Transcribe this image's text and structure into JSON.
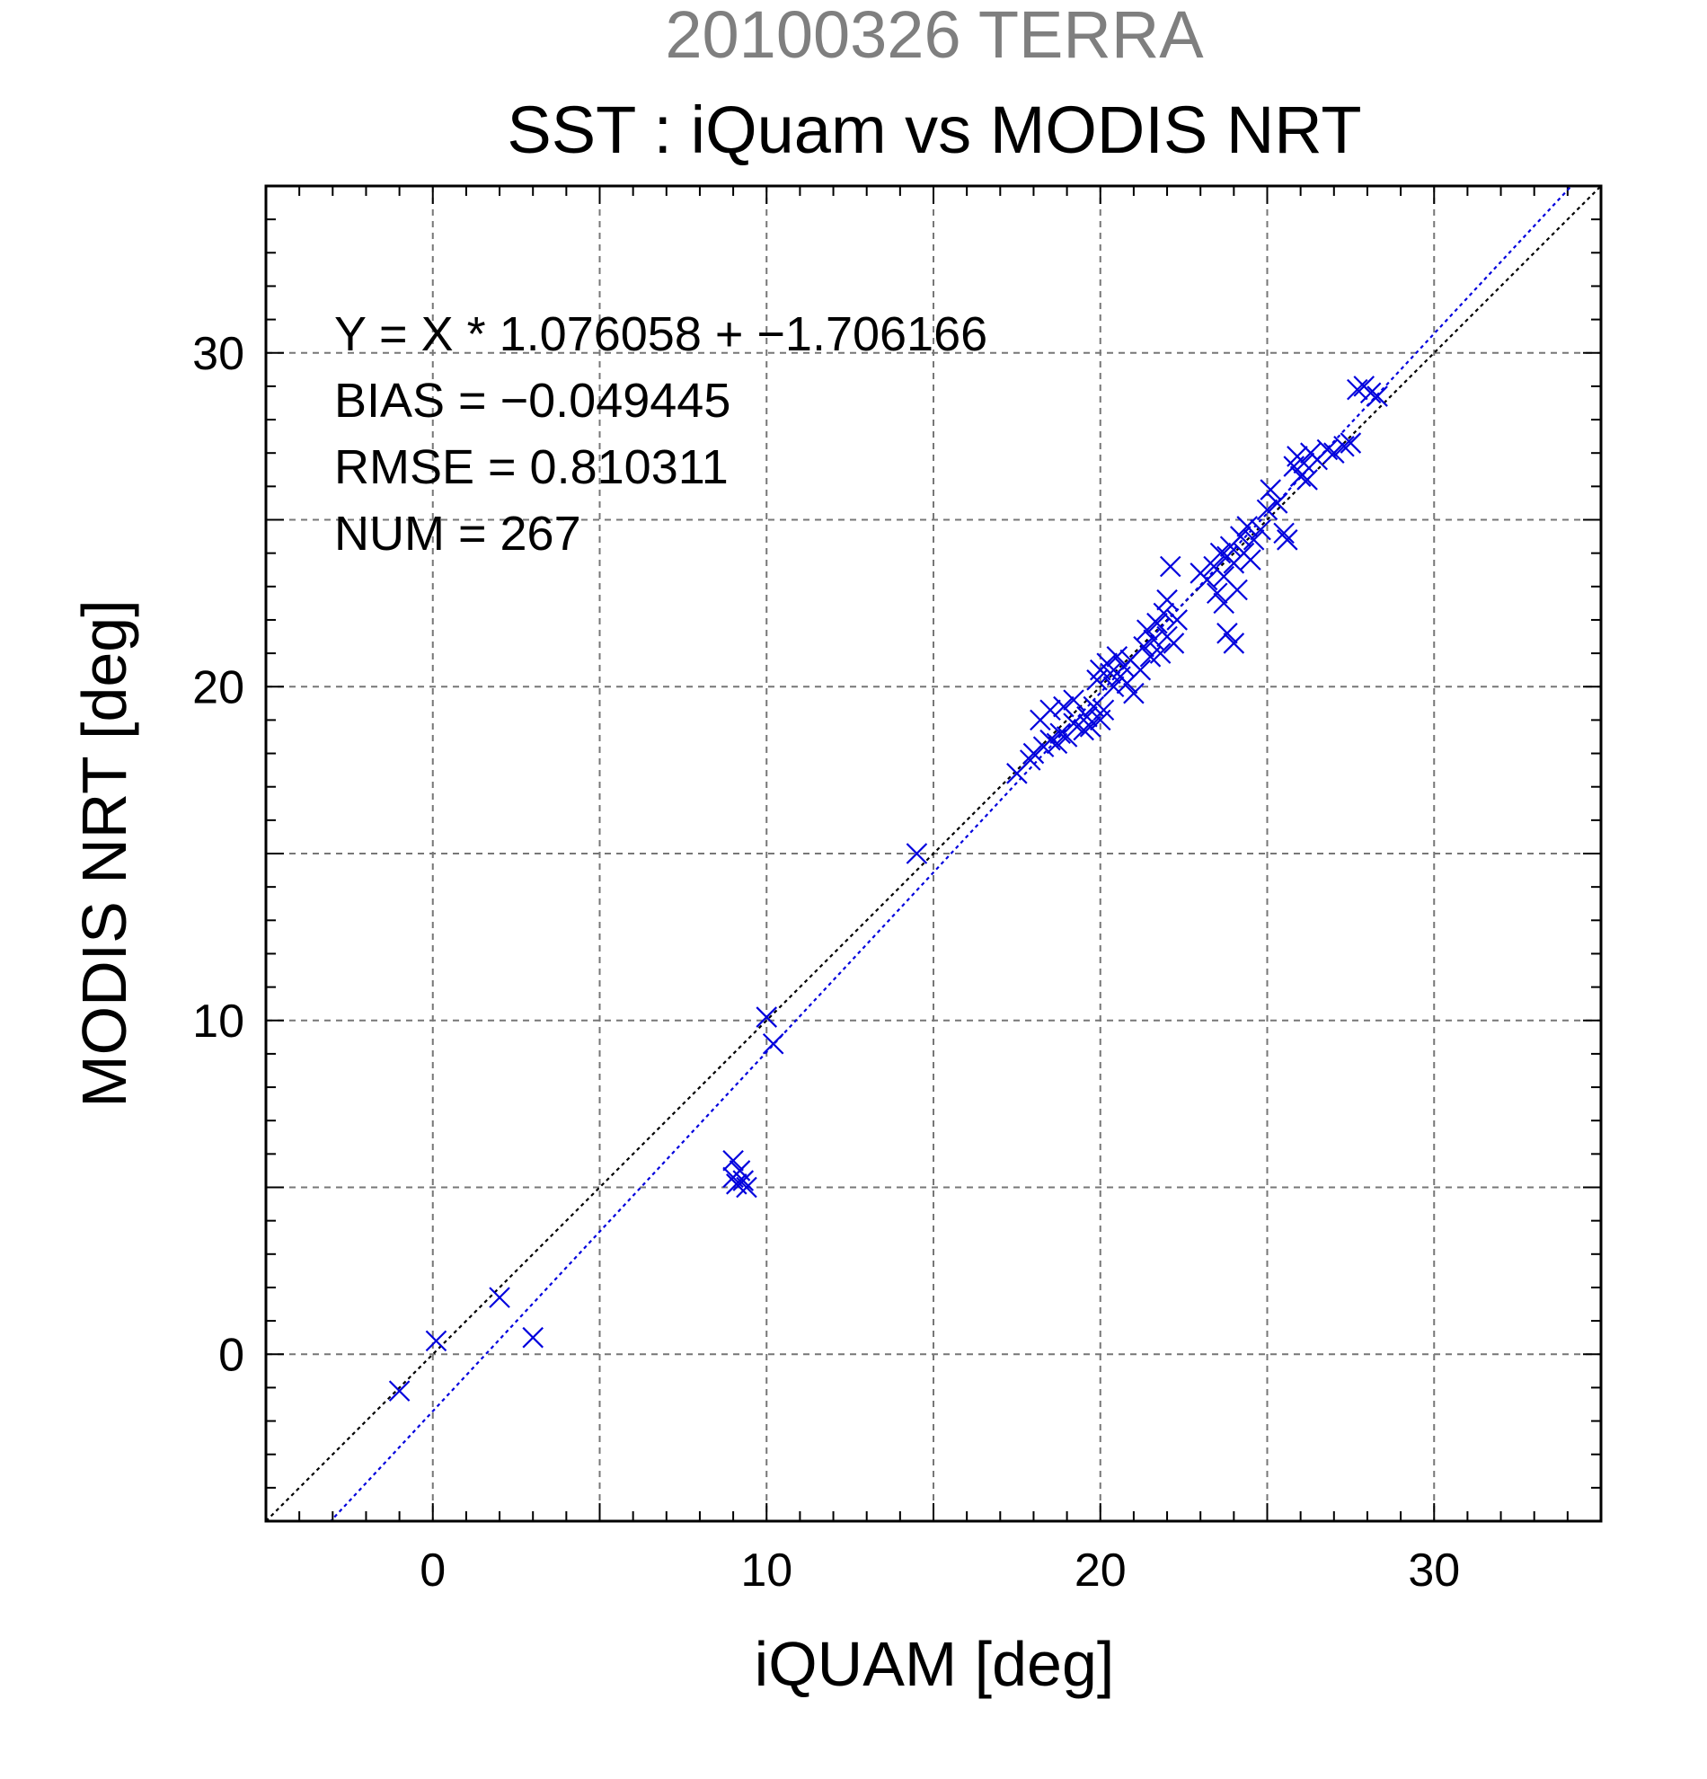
{
  "chart_data": {
    "type": "scatter",
    "title": "20100326 TERRA",
    "subtitle": "SST : iQuam vs MODIS NRT",
    "xlabel": "iQUAM [deg]",
    "ylabel": "MODIS NRT [deg]",
    "xlim": [
      -5,
      35
    ],
    "ylim": [
      -5,
      35
    ],
    "xticks": [
      0,
      10,
      20,
      30
    ],
    "yticks": [
      0,
      10,
      20,
      30
    ],
    "grid_step": 5,
    "grid": true,
    "stats": [
      "Y = X * 1.076058 + −1.706166",
      "BIAS = −0.049445",
      "RMSE = 0.810311",
      "NUM = 267"
    ],
    "regression": {
      "slope": 1.076058,
      "intercept": -1.706166
    },
    "reference_line": "y = x",
    "colors": {
      "points": "#0000dd",
      "fit_line": "#0000dd",
      "ref_line": "#000000",
      "grid": "#777777",
      "title_top": "#7f7f7f"
    },
    "series": [
      {
        "marker": "x",
        "points": [
          [
            -1.0,
            -1.1
          ],
          [
            0.1,
            0.4
          ],
          [
            2.0,
            1.7
          ],
          [
            3.0,
            0.5
          ],
          [
            9.0,
            5.8
          ],
          [
            9.0,
            5.3
          ],
          [
            9.1,
            5.1
          ],
          [
            9.2,
            5.5
          ],
          [
            9.3,
            5.2
          ],
          [
            9.4,
            5.0
          ],
          [
            10.0,
            10.1
          ],
          [
            10.2,
            9.3
          ],
          [
            14.5,
            15.0
          ],
          [
            17.5,
            17.4
          ],
          [
            17.9,
            17.8
          ],
          [
            18.0,
            18.0
          ],
          [
            18.2,
            19.0
          ],
          [
            18.3,
            18.2
          ],
          [
            18.5,
            18.4
          ],
          [
            18.5,
            19.3
          ],
          [
            18.7,
            18.3
          ],
          [
            18.8,
            18.6
          ],
          [
            18.9,
            19.4
          ],
          [
            19.0,
            18.5
          ],
          [
            19.2,
            18.9
          ],
          [
            19.2,
            19.6
          ],
          [
            19.5,
            18.7
          ],
          [
            19.6,
            19.1
          ],
          [
            19.7,
            18.8
          ],
          [
            19.8,
            19.4
          ],
          [
            19.9,
            20.2
          ],
          [
            20.0,
            20.5
          ],
          [
            20.0,
            19.0
          ],
          [
            20.1,
            19.3
          ],
          [
            20.2,
            20.7
          ],
          [
            20.3,
            20.4
          ],
          [
            20.4,
            20.0
          ],
          [
            20.5,
            20.9
          ],
          [
            20.6,
            20.3
          ],
          [
            20.7,
            20.6
          ],
          [
            20.8,
            20.1
          ],
          [
            20.9,
            20.8
          ],
          [
            21.0,
            19.8
          ],
          [
            21.2,
            20.5
          ],
          [
            21.3,
            21.2
          ],
          [
            21.4,
            21.7
          ],
          [
            21.5,
            20.9
          ],
          [
            21.6,
            21.4
          ],
          [
            21.7,
            21.9
          ],
          [
            21.8,
            21.0
          ],
          [
            21.9,
            22.2
          ],
          [
            22.0,
            21.5
          ],
          [
            22.0,
            22.6
          ],
          [
            22.1,
            23.6
          ],
          [
            22.2,
            21.3
          ],
          [
            22.3,
            22.0
          ],
          [
            23.0,
            23.4
          ],
          [
            23.2,
            23.2
          ],
          [
            23.4,
            23.6
          ],
          [
            23.5,
            22.8
          ],
          [
            23.6,
            24.0
          ],
          [
            23.7,
            23.3
          ],
          [
            23.7,
            22.5
          ],
          [
            23.8,
            21.6
          ],
          [
            23.8,
            23.9
          ],
          [
            23.9,
            24.2
          ],
          [
            24.0,
            21.3
          ],
          [
            24.0,
            23.7
          ],
          [
            24.1,
            22.9
          ],
          [
            24.2,
            24.5
          ],
          [
            24.3,
            24.0
          ],
          [
            24.4,
            24.8
          ],
          [
            24.5,
            23.8
          ],
          [
            24.6,
            24.4
          ],
          [
            24.8,
            24.7
          ],
          [
            25.0,
            25.3
          ],
          [
            25.1,
            25.9
          ],
          [
            25.3,
            25.5
          ],
          [
            25.5,
            24.6
          ],
          [
            25.6,
            24.4
          ],
          [
            25.8,
            26.6
          ],
          [
            25.9,
            26.9
          ],
          [
            26.0,
            26.3
          ],
          [
            26.1,
            26.7
          ],
          [
            26.2,
            26.2
          ],
          [
            26.3,
            27.0
          ],
          [
            26.5,
            26.8
          ],
          [
            26.8,
            27.1
          ],
          [
            27.0,
            27.0
          ],
          [
            27.3,
            27.2
          ],
          [
            27.5,
            27.3
          ],
          [
            27.7,
            28.9
          ],
          [
            27.9,
            29.0
          ],
          [
            28.1,
            28.8
          ],
          [
            28.3,
            28.7
          ]
        ]
      }
    ]
  }
}
